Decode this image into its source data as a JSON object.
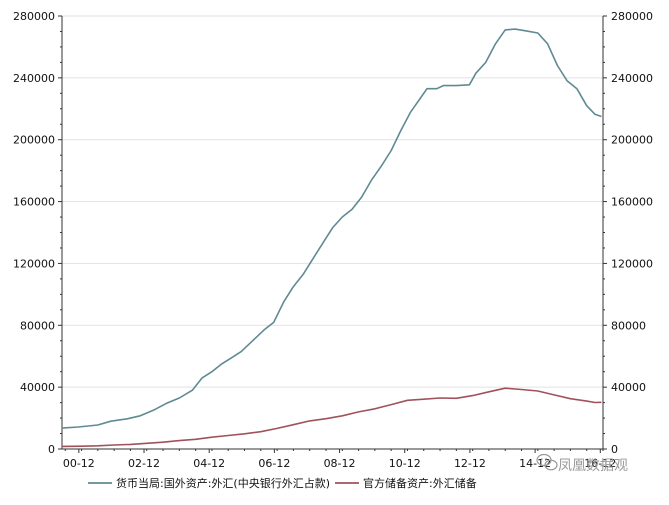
{
  "chart_data": {
    "type": "line",
    "title": "",
    "xlabel": "",
    "ylabel": "",
    "x_tick_labels": [
      "00-12",
      "02-12",
      "04-12",
      "06-12",
      "08-12",
      "10-12",
      "12-12",
      "14-12",
      "16-12"
    ],
    "x_range": [
      2000.4,
      2017.0
    ],
    "ylim": [
      0,
      280000
    ],
    "y_ticks": [
      0,
      40000,
      80000,
      120000,
      160000,
      200000,
      240000,
      280000
    ],
    "y_tick_labels": [
      "0",
      "40000",
      "80000",
      "120000",
      "160000",
      "200000",
      "240000",
      "280000"
    ],
    "grid": "horizontal",
    "legend_position": "bottom",
    "series": [
      {
        "name": "货币当局:国外资产:外汇(中央银行外汇占款)",
        "color": "#5f8a94",
        "points": [
          [
            2000.4,
            13500
          ],
          [
            2000.9,
            14200
          ],
          [
            2001.5,
            15500
          ],
          [
            2001.9,
            18000
          ],
          [
            2002.4,
            19500
          ],
          [
            2002.8,
            21500
          ],
          [
            2003.2,
            25000
          ],
          [
            2003.6,
            29500
          ],
          [
            2004.0,
            33000
          ],
          [
            2004.4,
            38000
          ],
          [
            2004.7,
            46000
          ],
          [
            2005.0,
            50000
          ],
          [
            2005.3,
            55000
          ],
          [
            2005.6,
            59000
          ],
          [
            2005.9,
            63000
          ],
          [
            2006.2,
            69000
          ],
          [
            2006.6,
            77000
          ],
          [
            2006.9,
            82000
          ],
          [
            2007.2,
            95000
          ],
          [
            2007.5,
            105000
          ],
          [
            2007.8,
            113000
          ],
          [
            2008.1,
            123000
          ],
          [
            2008.4,
            133000
          ],
          [
            2008.7,
            143000
          ],
          [
            2009.0,
            150000
          ],
          [
            2009.3,
            155000
          ],
          [
            2009.6,
            163000
          ],
          [
            2009.9,
            174000
          ],
          [
            2010.2,
            183000
          ],
          [
            2010.5,
            193000
          ],
          [
            2010.8,
            206000
          ],
          [
            2011.1,
            218000
          ],
          [
            2011.4,
            227000
          ],
          [
            2011.6,
            233000
          ],
          [
            2011.9,
            233000
          ],
          [
            2012.1,
            235000
          ],
          [
            2012.5,
            235000
          ],
          [
            2012.9,
            235500
          ],
          [
            2013.1,
            243000
          ],
          [
            2013.4,
            250000
          ],
          [
            2013.7,
            262000
          ],
          [
            2014.0,
            271000
          ],
          [
            2014.3,
            271500
          ],
          [
            2014.6,
            270500
          ],
          [
            2015.0,
            269000
          ],
          [
            2015.3,
            262000
          ],
          [
            2015.6,
            248000
          ],
          [
            2015.9,
            238000
          ],
          [
            2016.2,
            233000
          ],
          [
            2016.5,
            222000
          ],
          [
            2016.75,
            216500
          ],
          [
            2016.95,
            215000
          ]
        ]
      },
      {
        "name": "官方储备资产:外汇储备",
        "color": "#a0525b",
        "points": [
          [
            2000.4,
            1650
          ],
          [
            2001.0,
            1800
          ],
          [
            2001.5,
            2100
          ],
          [
            2002.0,
            2600
          ],
          [
            2002.5,
            3000
          ],
          [
            2003.0,
            3700
          ],
          [
            2003.5,
            4400
          ],
          [
            2004.0,
            5400
          ],
          [
            2004.5,
            6300
          ],
          [
            2005.0,
            7600
          ],
          [
            2005.5,
            8700
          ],
          [
            2006.0,
            9800
          ],
          [
            2006.5,
            11200
          ],
          [
            2007.0,
            13300
          ],
          [
            2007.5,
            15700
          ],
          [
            2008.0,
            18200
          ],
          [
            2008.5,
            19600
          ],
          [
            2009.0,
            21500
          ],
          [
            2009.5,
            24000
          ],
          [
            2010.0,
            26000
          ],
          [
            2010.5,
            28700
          ],
          [
            2011.0,
            31500
          ],
          [
            2011.5,
            32200
          ],
          [
            2012.0,
            33000
          ],
          [
            2012.5,
            32800
          ],
          [
            2013.0,
            34500
          ],
          [
            2013.5,
            37000
          ],
          [
            2014.0,
            39300
          ],
          [
            2014.5,
            38500
          ],
          [
            2015.0,
            37500
          ],
          [
            2015.5,
            35000
          ],
          [
            2016.0,
            32500
          ],
          [
            2016.5,
            31000
          ],
          [
            2016.75,
            30100
          ],
          [
            2016.95,
            30200
          ]
        ]
      }
    ]
  },
  "watermark": {
    "text": "凤凰数据观",
    "color": "#9a9a9a"
  }
}
